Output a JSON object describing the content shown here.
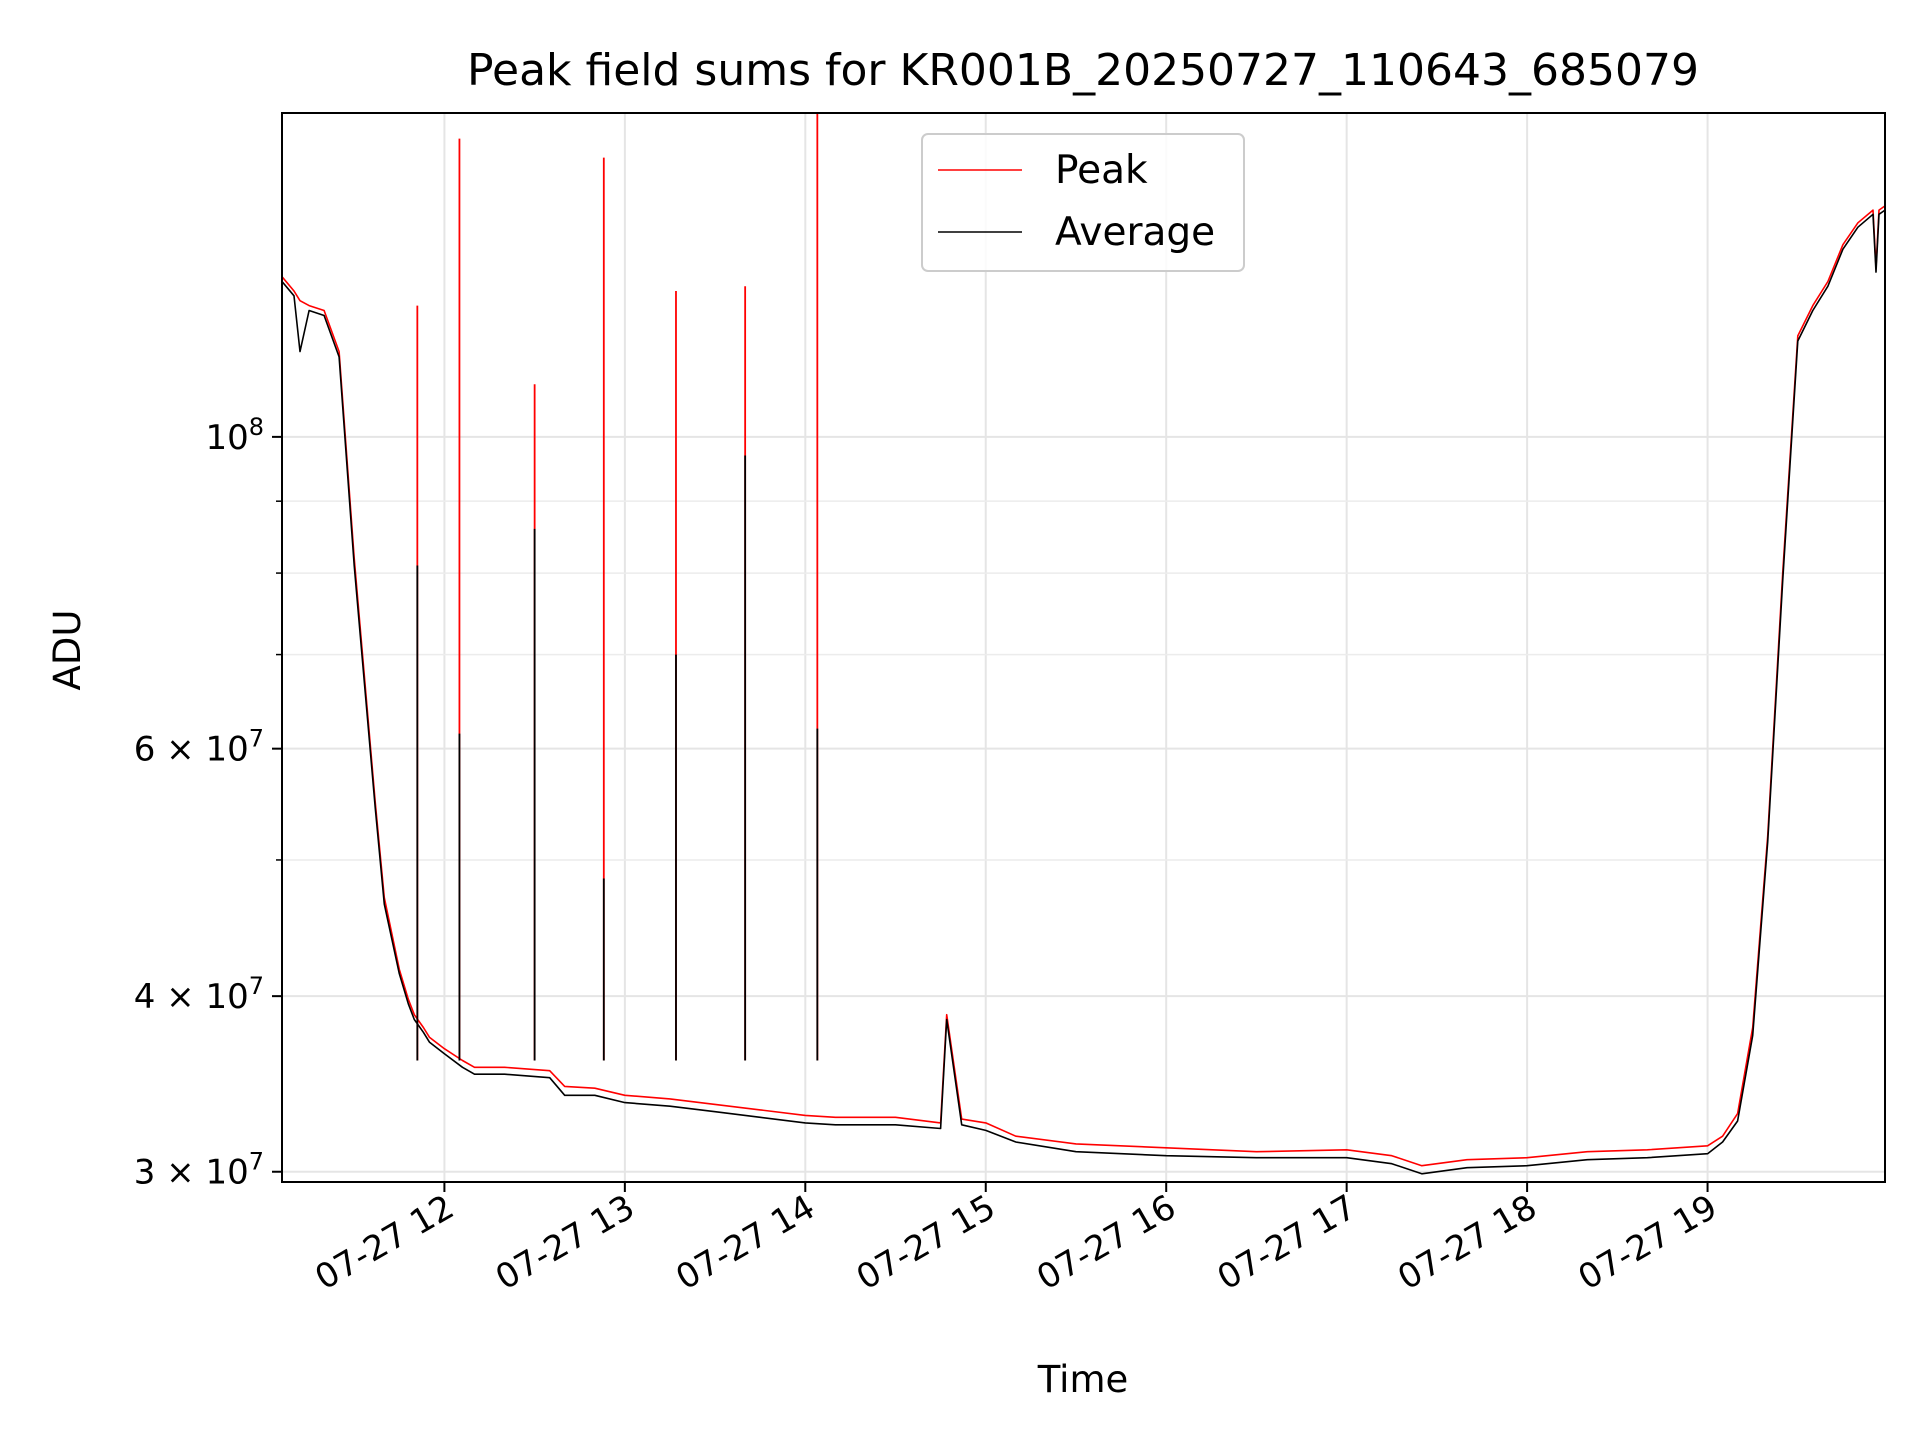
{
  "chart_data": {
    "type": "line",
    "title": "Peak field sums for KR001B_20250727_110643_685079",
    "xlabel": "Time",
    "ylabel": "ADU",
    "y_scale": "log",
    "ylim": [
      29500000,
      170000000
    ],
    "xlim": [
      "2025-07-27 11:06",
      "2025-07-27 19:59"
    ],
    "x_ticks": [
      {
        "x": "2025-07-27 12:00",
        "label": "07-27 12"
      },
      {
        "x": "2025-07-27 13:00",
        "label": "07-27 13"
      },
      {
        "x": "2025-07-27 14:00",
        "label": "07-27 14"
      },
      {
        "x": "2025-07-27 15:00",
        "label": "07-27 15"
      },
      {
        "x": "2025-07-27 16:00",
        "label": "07-27 16"
      },
      {
        "x": "2025-07-27 17:00",
        "label": "07-27 17"
      },
      {
        "x": "2025-07-27 18:00",
        "label": "07-27 18"
      },
      {
        "x": "2025-07-27 19:00",
        "label": "07-27 19"
      }
    ],
    "y_ticks": [
      {
        "y": 30000000,
        "base": "3 × 10",
        "exp": "7"
      },
      {
        "y": 40000000,
        "base": "4 × 10",
        "exp": "7"
      },
      {
        "y": 60000000,
        "base": "6 × 10",
        "exp": "7"
      },
      {
        "y": 100000000,
        "base": "10",
        "exp": "8"
      }
    ],
    "y_minor_ticks": [
      50000000,
      70000000,
      80000000,
      90000000
    ],
    "grid": true,
    "legend": "upper-center",
    "series": [
      {
        "name": "Peak",
        "color": "#ff0000",
        "x": [
          "2025-07-27 11:06",
          "2025-07-27 11:10",
          "2025-07-27 11:12",
          "2025-07-27 11:15",
          "2025-07-27 11:20",
          "2025-07-27 11:25",
          "2025-07-27 11:30",
          "2025-07-27 11:37",
          "2025-07-27 11:40",
          "2025-07-27 11:45",
          "2025-07-27 11:48",
          "2025-07-27 11:50",
          "2025-07-27 11:53",
          "2025-07-27 11:55",
          "2025-07-27 12:00",
          "2025-07-27 12:06",
          "2025-07-27 12:10",
          "2025-07-27 12:20",
          "2025-07-27 12:35",
          "2025-07-27 12:40",
          "2025-07-27 12:50",
          "2025-07-27 13:00",
          "2025-07-27 13:15",
          "2025-07-27 13:30",
          "2025-07-27 13:45",
          "2025-07-27 14:00",
          "2025-07-27 14:10",
          "2025-07-27 14:30",
          "2025-07-27 14:45",
          "2025-07-27 14:47",
          "2025-07-27 14:52",
          "2025-07-27 15:00",
          "2025-07-27 15:10",
          "2025-07-27 15:30",
          "2025-07-27 16:00",
          "2025-07-27 16:30",
          "2025-07-27 17:00",
          "2025-07-27 17:15",
          "2025-07-27 17:25",
          "2025-07-27 17:40",
          "2025-07-27 18:00",
          "2025-07-27 18:20",
          "2025-07-27 18:40",
          "2025-07-27 19:00",
          "2025-07-27 19:05",
          "2025-07-27 19:10",
          "2025-07-27 19:15",
          "2025-07-27 19:20",
          "2025-07-27 19:25",
          "2025-07-27 19:30",
          "2025-07-27 19:35",
          "2025-07-27 19:40",
          "2025-07-27 19:45",
          "2025-07-27 19:50",
          "2025-07-27 19:55",
          "2025-07-27 19:56",
          "2025-07-27 19:57",
          "2025-07-27 19:59"
        ],
        "y": [
          130000000,
          127000000,
          125000000,
          124000000,
          123000000,
          115000000,
          82000000,
          55000000,
          47000000,
          41800000,
          39800000,
          38800000,
          38000000,
          37400000,
          36700000,
          36000000,
          35600000,
          35600000,
          35400000,
          34500000,
          34400000,
          34000000,
          33800000,
          33500000,
          33200000,
          32900000,
          32800000,
          32800000,
          32500000,
          38800000,
          32700000,
          32500000,
          31800000,
          31400000,
          31200000,
          31000000,
          31100000,
          30800000,
          30300000,
          30600000,
          30700000,
          31000000,
          31100000,
          31300000,
          31800000,
          33000000,
          38000000,
          52000000,
          80000000,
          118000000,
          124000000,
          129000000,
          137000000,
          142000000,
          145000000,
          132000000,
          145000000,
          146000000
        ]
      },
      {
        "name": "Average",
        "color": "#000000",
        "x": [
          "2025-07-27 11:06",
          "2025-07-27 11:10",
          "2025-07-27 11:12",
          "2025-07-27 11:15",
          "2025-07-27 11:20",
          "2025-07-27 11:25",
          "2025-07-27 11:30",
          "2025-07-27 11:37",
          "2025-07-27 11:40",
          "2025-07-27 11:45",
          "2025-07-27 11:48",
          "2025-07-27 11:50",
          "2025-07-27 11:53",
          "2025-07-27 11:55",
          "2025-07-27 12:00",
          "2025-07-27 12:06",
          "2025-07-27 12:10",
          "2025-07-27 12:20",
          "2025-07-27 12:35",
          "2025-07-27 12:40",
          "2025-07-27 12:50",
          "2025-07-27 13:00",
          "2025-07-27 13:15",
          "2025-07-27 13:30",
          "2025-07-27 13:45",
          "2025-07-27 14:00",
          "2025-07-27 14:10",
          "2025-07-27 14:30",
          "2025-07-27 14:45",
          "2025-07-27 14:47",
          "2025-07-27 14:52",
          "2025-07-27 15:00",
          "2025-07-27 15:10",
          "2025-07-27 15:30",
          "2025-07-27 16:00",
          "2025-07-27 16:30",
          "2025-07-27 17:00",
          "2025-07-27 17:15",
          "2025-07-27 17:25",
          "2025-07-27 17:40",
          "2025-07-27 18:00",
          "2025-07-27 18:20",
          "2025-07-27 18:40",
          "2025-07-27 19:00",
          "2025-07-27 19:05",
          "2025-07-27 19:10",
          "2025-07-27 19:15",
          "2025-07-27 19:20",
          "2025-07-27 19:25",
          "2025-07-27 19:30",
          "2025-07-27 19:35",
          "2025-07-27 19:40",
          "2025-07-27 19:45",
          "2025-07-27 19:50",
          "2025-07-27 19:55",
          "2025-07-27 19:56",
          "2025-07-27 19:57",
          "2025-07-27 19:59"
        ],
        "y": [
          129000000,
          126000000,
          115000000,
          123000000,
          122000000,
          114000000,
          81000000,
          54500000,
          46500000,
          41500000,
          39500000,
          38500000,
          37700000,
          37100000,
          36400000,
          35600000,
          35200000,
          35200000,
          35000000,
          34000000,
          34000000,
          33600000,
          33400000,
          33100000,
          32800000,
          32500000,
          32400000,
          32400000,
          32200000,
          38500000,
          32400000,
          32100000,
          31500000,
          31000000,
          30800000,
          30700000,
          30700000,
          30400000,
          29900000,
          30200000,
          30300000,
          30600000,
          30700000,
          30900000,
          31500000,
          32600000,
          37500000,
          51500000,
          79000000,
          117000000,
          123000000,
          128000000,
          136000000,
          141000000,
          144000000,
          131000000,
          144000000,
          145000000
        ]
      }
    ],
    "spikes": [
      {
        "x": "2025-07-27 11:51",
        "peak": 124000000,
        "average": 81000000
      },
      {
        "x": "2025-07-27 12:05",
        "peak": 163000000,
        "average": 61500000
      },
      {
        "x": "2025-07-27 12:30",
        "peak": 109000000,
        "average": 86000000
      },
      {
        "x": "2025-07-27 12:53",
        "peak": 158000000,
        "average": 48500000
      },
      {
        "x": "2025-07-27 13:17",
        "peak": 127000000,
        "average": 70000000
      },
      {
        "x": "2025-07-27 13:40",
        "peak": 128000000,
        "average": 97000000
      },
      {
        "x": "2025-07-27 14:04",
        "peak": 170000000,
        "average": 62000000
      }
    ]
  }
}
